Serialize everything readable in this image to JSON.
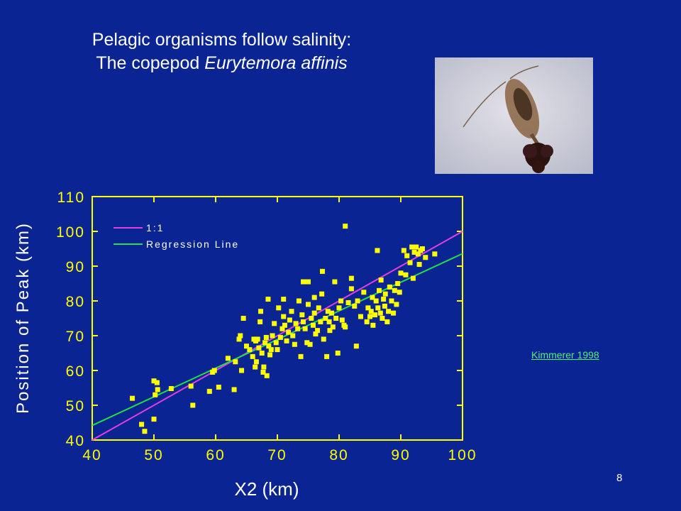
{
  "slide": {
    "title_line1": "Pelagic organisms follow salinity:",
    "title_line2_prefix": "The copepod ",
    "title_line2_italic": "Eurytemora affinis",
    "citation": "Kimmerer 1998",
    "page_number": "8"
  },
  "photo": {
    "icon": "copepod-photo"
  },
  "colors": {
    "background": "#0a2493",
    "plot_border": "#ffff00",
    "tick_labels": "#ffff00",
    "axis_titles": "#ffffff",
    "points": "#ffff00",
    "one_to_one": "#e040e0",
    "regression": "#22dd44",
    "citation": "#55f06a"
  },
  "chart_data": {
    "type": "scatter",
    "xlabel": "X2 (km)",
    "ylabel": "Position of Peak (km)",
    "xlim": [
      40,
      100
    ],
    "ylim": [
      40,
      110
    ],
    "xticks": [
      40,
      50,
      60,
      70,
      80,
      90,
      100
    ],
    "yticks": [
      40,
      50,
      60,
      70,
      80,
      90,
      100,
      110
    ],
    "grid": false,
    "legend_position": "top-left",
    "lines": [
      {
        "name": "1:1",
        "color": "#e040e0",
        "x": [
          40,
          100
        ],
        "y": [
          40,
          100
        ]
      },
      {
        "name": "Regression Line",
        "color": "#22dd44",
        "x": [
          40,
          100
        ],
        "y": [
          44.2,
          93.6
        ]
      }
    ],
    "points": [
      [
        46.5,
        52
      ],
      [
        48,
        44.5
      ],
      [
        48.5,
        42.5
      ],
      [
        50,
        57
      ],
      [
        50,
        46
      ],
      [
        50.5,
        56.5
      ],
      [
        50.2,
        53
      ],
      [
        50.6,
        54.5
      ],
      [
        52.8,
        54.8
      ],
      [
        56,
        55.5
      ],
      [
        56.3,
        50
      ],
      [
        59,
        54
      ],
      [
        59.5,
        59.5
      ],
      [
        59.8,
        60
      ],
      [
        60.5,
        55.2
      ],
      [
        62,
        63.5
      ],
      [
        63,
        54.5
      ],
      [
        63.2,
        62.5
      ],
      [
        63.8,
        69
      ],
      [
        64,
        70
      ],
      [
        64.2,
        60
      ],
      [
        64.5,
        75
      ],
      [
        65,
        67
      ],
      [
        65.5,
        66
      ],
      [
        66,
        64
      ],
      [
        66.2,
        69
      ],
      [
        66.4,
        61
      ],
      [
        66.5,
        68.5
      ],
      [
        66.6,
        62.5
      ],
      [
        66.8,
        69
      ],
      [
        67,
        66.5
      ],
      [
        67.2,
        74
      ],
      [
        67.3,
        77
      ],
      [
        67.5,
        65
      ],
      [
        67.7,
        59.5
      ],
      [
        67.8,
        61
      ],
      [
        68,
        68
      ],
      [
        68.2,
        69.5
      ],
      [
        68.3,
        58.5
      ],
      [
        68.5,
        80.5
      ],
      [
        68.6,
        67
      ],
      [
        68.8,
        64.5
      ],
      [
        69,
        66
      ],
      [
        69.2,
        70
      ],
      [
        69.5,
        73.5
      ],
      [
        69.8,
        68
      ],
      [
        70,
        66
      ],
      [
        70.2,
        78
      ],
      [
        70.5,
        69.5
      ],
      [
        70.8,
        72
      ],
      [
        71,
        75.5
      ],
      [
        71,
        80.5
      ],
      [
        71.2,
        73
      ],
      [
        71.5,
        68.5
      ],
      [
        71.8,
        71
      ],
      [
        72,
        74.5
      ],
      [
        72.3,
        77
      ],
      [
        72.5,
        70
      ],
      [
        72.8,
        67.5
      ],
      [
        73,
        73.5
      ],
      [
        73.3,
        72
      ],
      [
        73.5,
        80
      ],
      [
        73.8,
        64
      ],
      [
        74,
        76
      ],
      [
        74.2,
        74
      ],
      [
        74.2,
        85.5
      ],
      [
        74.5,
        72
      ],
      [
        74.8,
        68
      ],
      [
        75,
        79
      ],
      [
        75,
        85.5
      ],
      [
        75.3,
        67.5
      ],
      [
        75.5,
        75
      ],
      [
        75.8,
        73
      ],
      [
        76,
        76.5
      ],
      [
        76,
        81
      ],
      [
        76.2,
        70.5
      ],
      [
        76.5,
        71.5
      ],
      [
        76.7,
        78
      ],
      [
        77,
        74
      ],
      [
        77.2,
        82
      ],
      [
        77.3,
        88.5
      ],
      [
        77.5,
        69
      ],
      [
        77.8,
        75
      ],
      [
        78,
        64
      ],
      [
        78.2,
        77
      ],
      [
        78.4,
        74
      ],
      [
        78.5,
        71.5
      ],
      [
        78.8,
        76.5
      ],
      [
        79,
        72.5
      ],
      [
        79.3,
        85.5
      ],
      [
        79.5,
        75
      ],
      [
        79.8,
        65
      ],
      [
        80,
        78
      ],
      [
        80.3,
        80
      ],
      [
        80.5,
        74.5
      ],
      [
        80.8,
        73
      ],
      [
        81,
        72.5
      ],
      [
        81,
        101.5
      ],
      [
        81.5,
        79.5
      ],
      [
        82,
        83.5
      ],
      [
        82,
        86.5
      ],
      [
        82.5,
        78.5
      ],
      [
        82.8,
        67
      ],
      [
        83,
        80
      ],
      [
        83.5,
        75.5
      ],
      [
        84,
        82.5
      ],
      [
        84.5,
        74
      ],
      [
        84.7,
        78
      ],
      [
        85,
        75.5
      ],
      [
        85.2,
        77
      ],
      [
        85.4,
        81
      ],
      [
        85.5,
        73
      ],
      [
        85.8,
        76
      ],
      [
        86,
        80
      ],
      [
        86.2,
        94.5
      ],
      [
        86.3,
        78
      ],
      [
        86.5,
        83
      ],
      [
        86.7,
        76.5
      ],
      [
        86.8,
        86
      ],
      [
        87,
        75
      ],
      [
        87.2,
        80.5
      ],
      [
        87.4,
        78.5
      ],
      [
        87.5,
        82
      ],
      [
        87.8,
        74
      ],
      [
        88,
        77
      ],
      [
        88.2,
        84
      ],
      [
        88.5,
        80
      ],
      [
        88.8,
        76.5
      ],
      [
        89,
        83
      ],
      [
        89.3,
        79
      ],
      [
        89.5,
        85
      ],
      [
        89.8,
        82.5
      ],
      [
        90,
        88
      ],
      [
        90.5,
        94.5
      ],
      [
        90.8,
        87.5
      ],
      [
        91,
        93
      ],
      [
        91.5,
        91
      ],
      [
        91.8,
        95.5
      ],
      [
        92,
        86.5
      ],
      [
        92.2,
        94
      ],
      [
        92.5,
        95.5
      ],
      [
        92.8,
        93.5
      ],
      [
        93,
        90.5
      ],
      [
        93.2,
        94.5
      ],
      [
        93.5,
        95
      ],
      [
        94,
        92.5
      ],
      [
        95.5,
        93.5
      ]
    ]
  }
}
